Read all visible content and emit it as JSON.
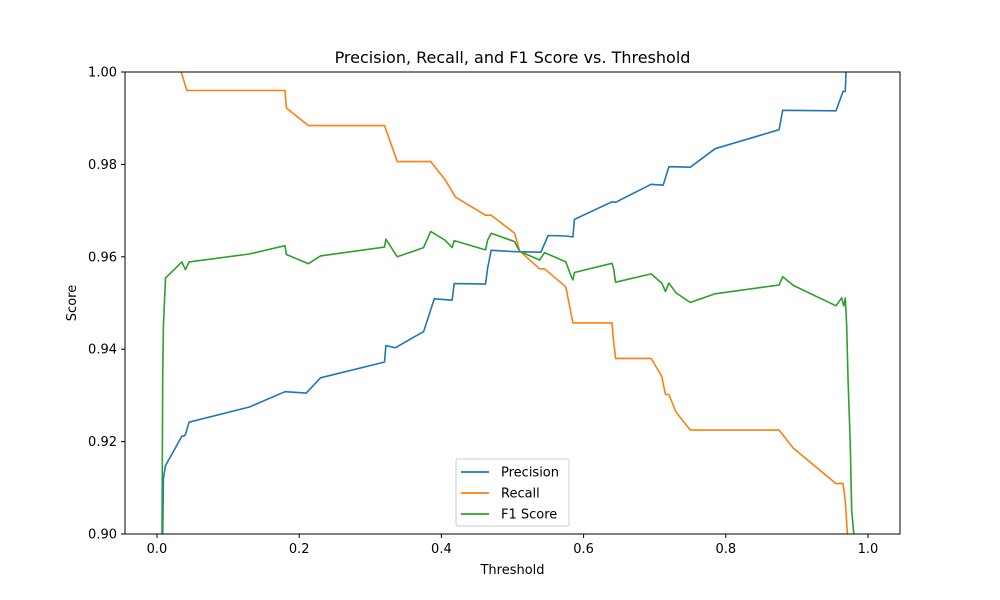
{
  "chart_data": {
    "type": "line",
    "title": "Precision, Recall, and F1 Score vs. Threshold",
    "xlabel": "Threshold",
    "ylabel": "Score",
    "xlim": [
      -0.045,
      1.045
    ],
    "ylim": [
      0.9,
      1.0
    ],
    "xticks": [
      0.0,
      0.2,
      0.4,
      0.6,
      0.8,
      1.0
    ],
    "xtick_labels": [
      "0.0",
      "0.2",
      "0.4",
      "0.6",
      "0.8",
      "1.0"
    ],
    "yticks": [
      0.9,
      0.92,
      0.94,
      0.96,
      0.98,
      1.0
    ],
    "ytick_labels": [
      "0.90",
      "0.92",
      "0.94",
      "0.96",
      "0.98",
      "1.00"
    ],
    "legend_position": "bottom-center",
    "series": [
      {
        "name": "Precision",
        "color": "#1f77b4",
        "x": [
          0.008,
          0.009,
          0.012,
          0.035,
          0.038,
          0.04,
          0.045,
          0.13,
          0.18,
          0.21,
          0.23,
          0.32,
          0.322,
          0.335,
          0.375,
          0.39,
          0.415,
          0.418,
          0.462,
          0.465,
          0.47,
          0.505,
          0.54,
          0.55,
          0.575,
          0.585,
          0.587,
          0.64,
          0.645,
          0.695,
          0.712,
          0.72,
          0.75,
          0.785,
          0.875,
          0.88,
          0.955,
          0.965,
          0.968,
          0.969
        ],
        "y": [
          0.9,
          0.912,
          0.9148,
          0.9212,
          0.9212,
          0.9215,
          0.9242,
          0.9275,
          0.9308,
          0.9305,
          0.9338,
          0.9372,
          0.9408,
          0.9403,
          0.9438,
          0.9509,
          0.9506,
          0.9542,
          0.9541,
          0.9575,
          0.9614,
          0.9611,
          0.961,
          0.9646,
          0.9645,
          0.9643,
          0.9681,
          0.9719,
          0.9718,
          0.9757,
          0.9755,
          0.9795,
          0.9794,
          0.9834,
          0.9875,
          0.9917,
          0.9916,
          0.9958,
          0.9958,
          1.0
        ]
      },
      {
        "name": "Recall",
        "color": "#ff7f0e",
        "x": [
          0.034,
          0.042,
          0.18,
          0.182,
          0.213,
          0.32,
          0.338,
          0.385,
          0.405,
          0.42,
          0.462,
          0.47,
          0.503,
          0.51,
          0.538,
          0.545,
          0.575,
          0.585,
          0.64,
          0.642,
          0.645,
          0.695,
          0.71,
          0.715,
          0.72,
          0.73,
          0.75,
          0.875,
          0.895,
          0.955,
          0.965,
          0.968,
          0.971
        ],
        "y": [
          1.0,
          0.996,
          0.996,
          0.9922,
          0.9884,
          0.9884,
          0.9806,
          0.9806,
          0.9767,
          0.9729,
          0.969,
          0.969,
          0.9651,
          0.9613,
          0.9574,
          0.9574,
          0.9535,
          0.9457,
          0.9457,
          0.9419,
          0.938,
          0.938,
          0.9341,
          0.9302,
          0.9302,
          0.9264,
          0.9225,
          0.9225,
          0.9186,
          0.9109,
          0.9109,
          0.907,
          0.9
        ]
      },
      {
        "name": "F1 Score",
        "color": "#2ca02c",
        "x": [
          0.007,
          0.008,
          0.009,
          0.012,
          0.035,
          0.04,
          0.045,
          0.13,
          0.18,
          0.182,
          0.213,
          0.23,
          0.32,
          0.322,
          0.338,
          0.375,
          0.385,
          0.405,
          0.415,
          0.418,
          0.462,
          0.465,
          0.47,
          0.503,
          0.51,
          0.538,
          0.545,
          0.575,
          0.582,
          0.585,
          0.587,
          0.64,
          0.642,
          0.645,
          0.695,
          0.71,
          0.715,
          0.72,
          0.73,
          0.75,
          0.785,
          0.875,
          0.88,
          0.895,
          0.955,
          0.963,
          0.966,
          0.968,
          0.97,
          0.972,
          0.975,
          0.977,
          0.98
        ],
        "y": [
          0.9,
          0.934,
          0.945,
          0.9554,
          0.9589,
          0.9572,
          0.9589,
          0.9606,
          0.9624,
          0.9605,
          0.9585,
          0.9602,
          0.9621,
          0.9638,
          0.96,
          0.962,
          0.9655,
          0.9636,
          0.962,
          0.9635,
          0.9615,
          0.9636,
          0.9651,
          0.9633,
          0.9612,
          0.9593,
          0.9609,
          0.9589,
          0.956,
          0.955,
          0.9566,
          0.9586,
          0.9575,
          0.9545,
          0.9563,
          0.9543,
          0.9525,
          0.9543,
          0.9522,
          0.9501,
          0.952,
          0.9539,
          0.9557,
          0.9538,
          0.9494,
          0.9511,
          0.9494,
          0.9511,
          0.945,
          0.933,
          0.92,
          0.905,
          0.9
        ]
      }
    ]
  }
}
